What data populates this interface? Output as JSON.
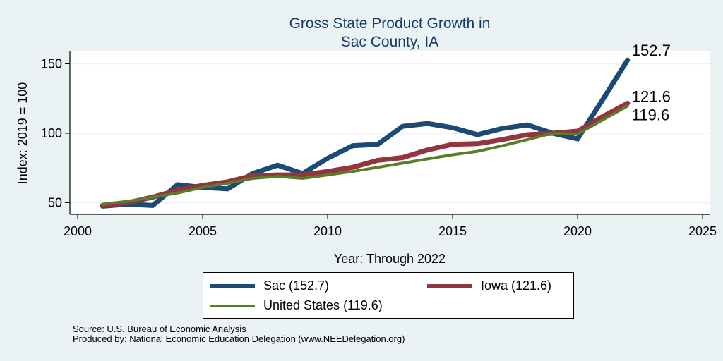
{
  "chart_data": {
    "type": "line",
    "title": [
      "Gross State Product Growth in",
      "Sac County, IA"
    ],
    "xlabel": "Year: Through 2022",
    "ylabel": "Index: 2019 = 100",
    "xlim": [
      2000,
      2025
    ],
    "ylim": [
      42,
      158
    ],
    "xticks": [
      2000,
      2005,
      2010,
      2015,
      2020,
      2025
    ],
    "yticks": [
      50,
      100,
      150
    ],
    "grid": true,
    "x": [
      2001,
      2002,
      2003,
      2004,
      2005,
      2006,
      2007,
      2008,
      2009,
      2010,
      2011,
      2012,
      2013,
      2014,
      2015,
      2016,
      2017,
      2018,
      2019,
      2020,
      2021,
      2022
    ],
    "series": [
      {
        "name": "Sac",
        "color": "#1a4a75",
        "width": "thick",
        "values": [
          47.5,
          49,
          48,
          63,
          61,
          60,
          71,
          77,
          71,
          82,
          91,
          92,
          105,
          107,
          104,
          99,
          103.5,
          106,
          100,
          96,
          124,
          152.7
        ],
        "end_label": "152.7"
      },
      {
        "name": "Iowa",
        "color": "#93343f",
        "width": "thick",
        "values": [
          48,
          50,
          54,
          59,
          62.5,
          65,
          69.5,
          70,
          70,
          72.5,
          75.5,
          80.5,
          82.5,
          88,
          92,
          92.5,
          95.5,
          99,
          100,
          101.5,
          112,
          121.6
        ],
        "end_label": "121.6"
      },
      {
        "name": "United States",
        "color": "#5a7d2a",
        "width": "medium",
        "values": [
          49,
          51,
          54,
          57,
          61,
          64,
          67.5,
          69,
          67.5,
          70,
          72.5,
          75.5,
          78.5,
          81.5,
          84.5,
          87,
          91,
          95.5,
          100,
          99.5,
          109.5,
          119.6
        ],
        "end_label": "119.6"
      }
    ],
    "legend": {
      "placement": "bottom",
      "entries": [
        "Sac  (152.7)",
        "Iowa (121.6)",
        "United States (119.6)"
      ]
    }
  },
  "source": {
    "line1": "Source: U.S. Bureau of Economic Analysis",
    "line2": "Produced by: National Economic Education Delegation (www.NEEDelegation.org)"
  }
}
